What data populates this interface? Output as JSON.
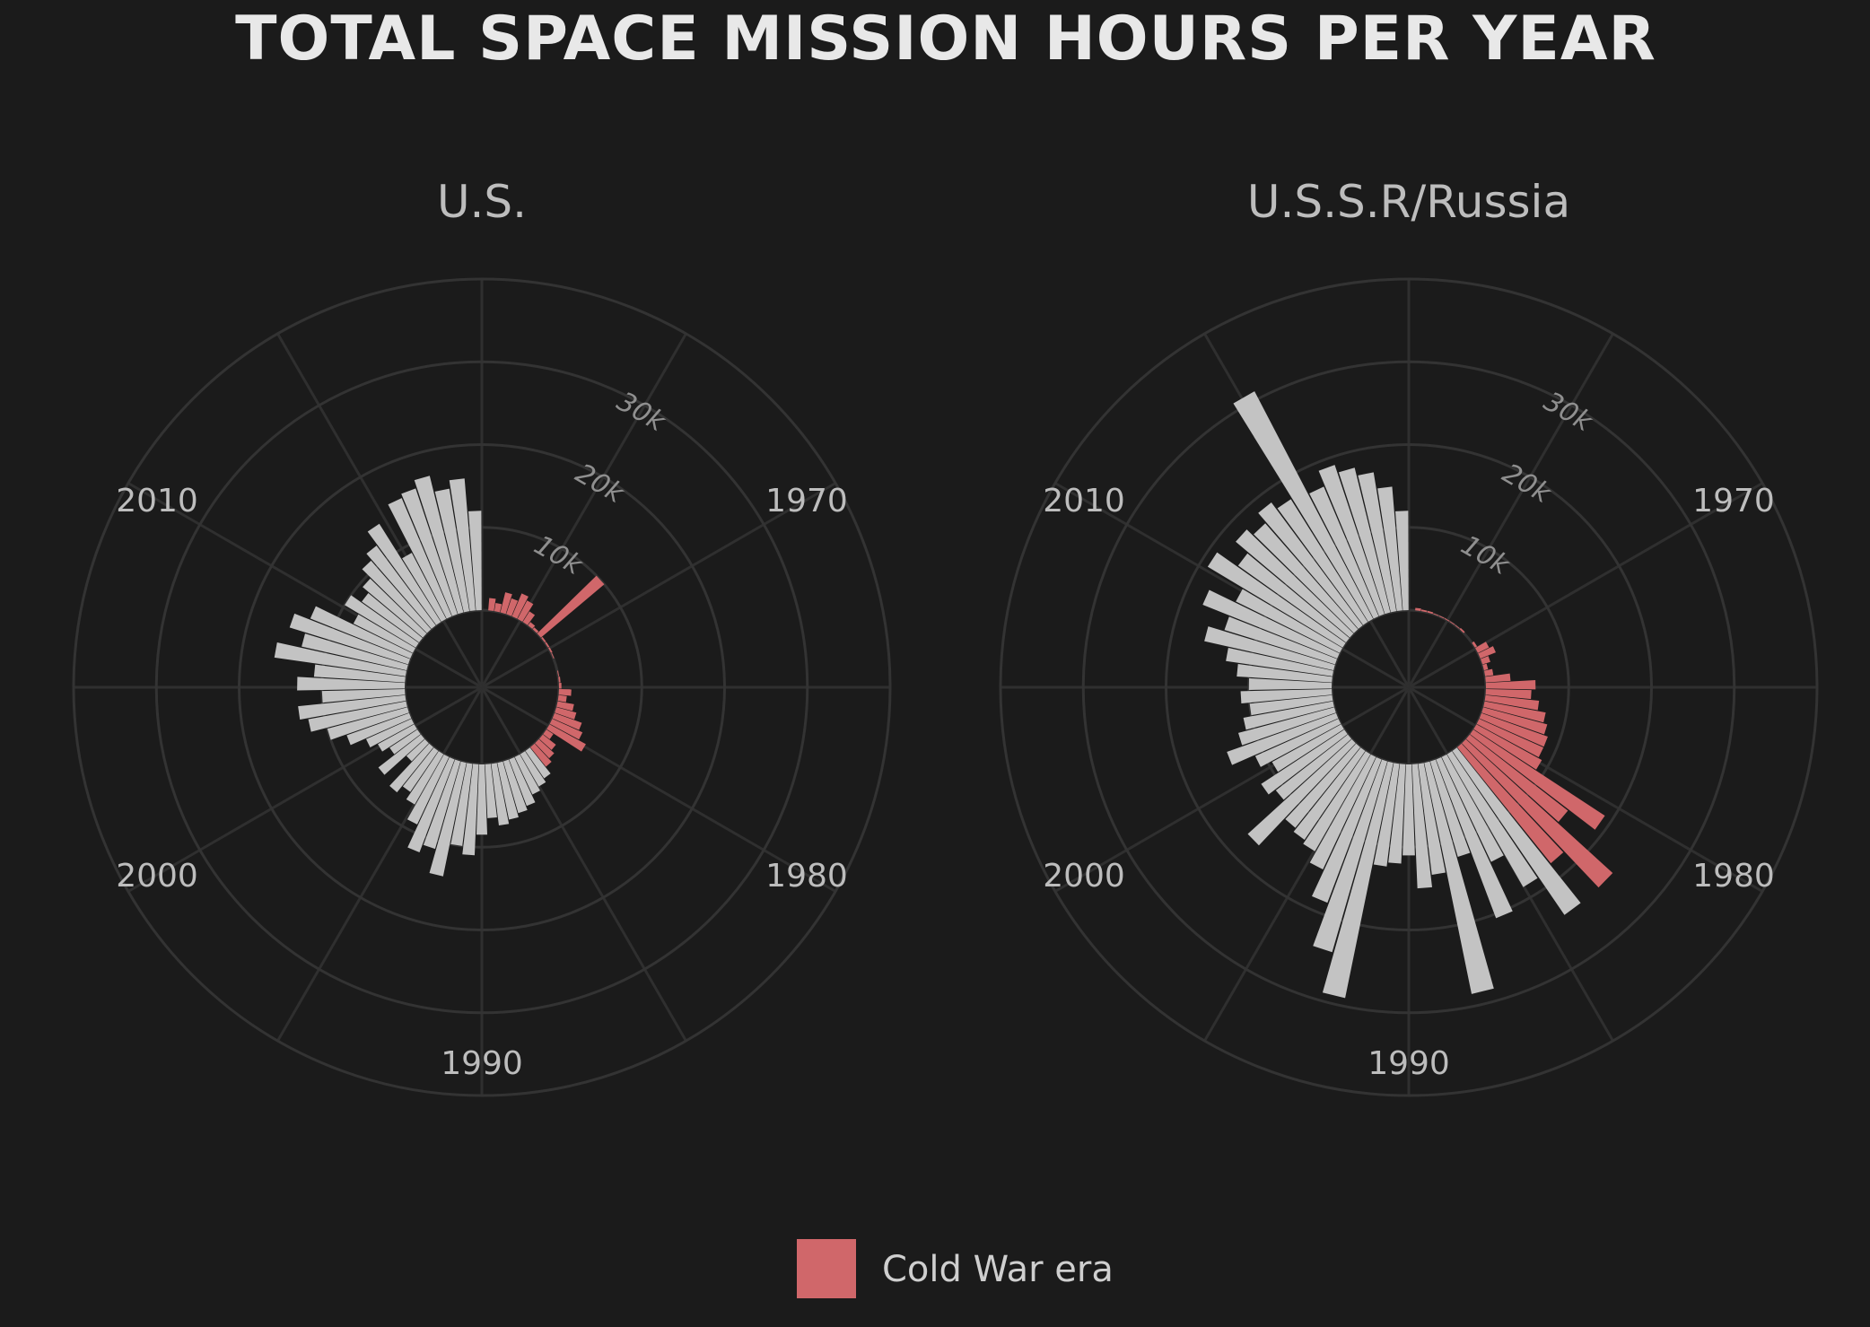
{
  "title": "TOTAL SPACE MISSION HOURS PER YEAR",
  "legend": {
    "label": "Cold War era"
  },
  "colors": {
    "background": "#1b1b1b",
    "cold_war": "#d0676a",
    "post_cold_war": "#c3c3c3",
    "grid": "#333333"
  },
  "chart_data": [
    {
      "type": "polar-bar",
      "title": "U.S.",
      "theta_ticks": [
        "1970",
        "1980",
        "1990",
        "2000",
        "2010"
      ],
      "radial_ticks": [
        "10k",
        "20k",
        "30k"
      ],
      "r_range": [
        0,
        40000
      ],
      "start_year": 1961,
      "cold_war_end_year": 1991,
      "values": [
        0,
        1500,
        1000,
        2500,
        2000,
        3000,
        2500,
        1500,
        500,
        300,
        10000,
        200,
        200,
        200,
        100,
        0,
        0,
        100,
        200,
        300,
        1500,
        1000,
        2000,
        2500,
        3500,
        4000,
        5000,
        1000,
        2000,
        2500,
        3000,
        4000,
        4500,
        5000,
        6000,
        6500,
        7000,
        7500,
        6500,
        8500,
        11000,
        10000,
        14000,
        11000,
        12000,
        9000,
        7000,
        6000,
        7000,
        3000,
        6500,
        4000,
        5000,
        6000,
        8000,
        10000,
        12000,
        13000,
        10000,
        13000,
        11000,
        16000,
        13000,
        15000,
        13000,
        8000,
        10000,
        8500,
        9500,
        11000,
        12000,
        14000,
        9000,
        15500,
        16000,
        17000,
        15000,
        16000,
        12000
      ]
    },
    {
      "type": "polar-bar",
      "title": "U.S.S.R/Russia",
      "theta_ticks": [
        "1970",
        "1980",
        "1990",
        "2000",
        "2010"
      ],
      "radial_ticks": [
        "10k",
        "20k",
        "30k"
      ],
      "r_range": [
        0,
        40000
      ],
      "start_year": 1961,
      "cold_war_end_year": 1991,
      "values": [
        0,
        300,
        200,
        200,
        100,
        100,
        100,
        100,
        100,
        200,
        0,
        0,
        300,
        1500,
        2000,
        1000,
        500,
        1000,
        3000,
        6000,
        5500,
        6500,
        7500,
        8000,
        8500,
        8500,
        9000,
        19000,
        15000,
        24000,
        18000,
        24000,
        18500,
        14000,
        20500,
        12000,
        28500,
        13500,
        15000,
        11000,
        12000,
        12500,
        29000,
        24000,
        18500,
        15000,
        13500,
        13000,
        12500,
        17000,
        11000,
        12000,
        9500,
        11000,
        14000,
        12000,
        11000,
        10000,
        11000,
        10000,
        11500,
        13000,
        16000,
        14000,
        17500,
        14000,
        19000,
        16000,
        18000,
        17000,
        18500,
        17500,
        31000,
        17000,
        19000,
        18000,
        17000,
        15000,
        12000
      ]
    }
  ]
}
